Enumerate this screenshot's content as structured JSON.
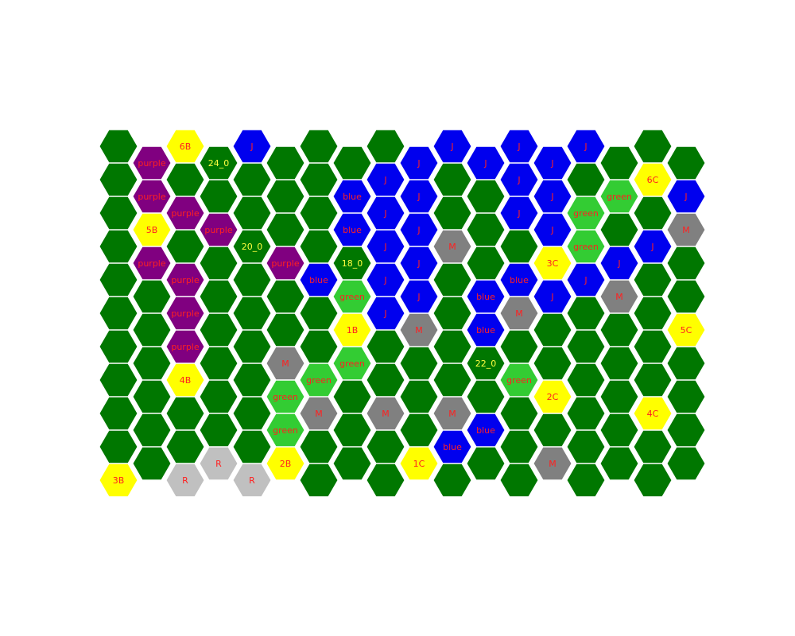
{
  "board": {
    "columns": 18,
    "rows": 11,
    "colors": {
      "forest": "#007700",
      "green": "#33cc33",
      "blue": "#0000ee",
      "purple": "#800080",
      "yellow": "#ffff00",
      "gray": "#808080",
      "silver": "#c0c0c0",
      "label_red": "#ff2020",
      "label_yellow": "#ffff40",
      "outline": "#ffffff"
    },
    "tiles": [
      {
        "col": 0,
        "row": 0,
        "fill": "forest"
      },
      {
        "col": 0,
        "row": 1,
        "fill": "forest"
      },
      {
        "col": 0,
        "row": 2,
        "fill": "forest"
      },
      {
        "col": 0,
        "row": 3,
        "fill": "forest"
      },
      {
        "col": 0,
        "row": 4,
        "fill": "forest"
      },
      {
        "col": 0,
        "row": 5,
        "fill": "forest"
      },
      {
        "col": 0,
        "row": 6,
        "fill": "forest"
      },
      {
        "col": 0,
        "row": 7,
        "fill": "forest"
      },
      {
        "col": 0,
        "row": 8,
        "fill": "forest"
      },
      {
        "col": 0,
        "row": 9,
        "fill": "forest"
      },
      {
        "col": 0,
        "row": 10,
        "fill": "yellow",
        "label": "3B",
        "label_color": "label_red"
      },
      {
        "col": 1,
        "row": 0,
        "fill": "purple",
        "label": "purple",
        "label_color": "label_red"
      },
      {
        "col": 1,
        "row": 1,
        "fill": "purple",
        "label": "purple",
        "label_color": "label_red"
      },
      {
        "col": 1,
        "row": 2,
        "fill": "yellow",
        "label": "5B",
        "label_color": "label_red"
      },
      {
        "col": 1,
        "row": 3,
        "fill": "purple",
        "label": "purple",
        "label_color": "label_red"
      },
      {
        "col": 1,
        "row": 4,
        "fill": "forest"
      },
      {
        "col": 1,
        "row": 5,
        "fill": "forest"
      },
      {
        "col": 1,
        "row": 6,
        "fill": "forest"
      },
      {
        "col": 1,
        "row": 7,
        "fill": "forest"
      },
      {
        "col": 1,
        "row": 8,
        "fill": "forest"
      },
      {
        "col": 1,
        "row": 9,
        "fill": "forest"
      },
      {
        "col": 2,
        "row": 0,
        "fill": "yellow",
        "label": "6B",
        "label_color": "label_red"
      },
      {
        "col": 2,
        "row": 1,
        "fill": "forest"
      },
      {
        "col": 2,
        "row": 2,
        "fill": "purple",
        "label": "purple",
        "label_color": "label_red"
      },
      {
        "col": 2,
        "row": 3,
        "fill": "forest"
      },
      {
        "col": 2,
        "row": 4,
        "fill": "purple",
        "label": "purple",
        "label_color": "label_red"
      },
      {
        "col": 2,
        "row": 5,
        "fill": "purple",
        "label": "purple",
        "label_color": "label_red"
      },
      {
        "col": 2,
        "row": 6,
        "fill": "purple",
        "label": "purple",
        "label_color": "label_red"
      },
      {
        "col": 2,
        "row": 7,
        "fill": "yellow",
        "label": "4B",
        "label_color": "label_red"
      },
      {
        "col": 2,
        "row": 8,
        "fill": "forest"
      },
      {
        "col": 2,
        "row": 9,
        "fill": "forest"
      },
      {
        "col": 2,
        "row": 10,
        "fill": "silver",
        "label": "R",
        "label_color": "label_red"
      },
      {
        "col": 3,
        "row": 0,
        "fill": "forest",
        "label": "24_0",
        "label_color": "label_yellow"
      },
      {
        "col": 3,
        "row": 1,
        "fill": "forest"
      },
      {
        "col": 3,
        "row": 2,
        "fill": "purple",
        "label": "purple",
        "label_color": "label_red"
      },
      {
        "col": 3,
        "row": 3,
        "fill": "forest"
      },
      {
        "col": 3,
        "row": 4,
        "fill": "forest"
      },
      {
        "col": 3,
        "row": 5,
        "fill": "forest"
      },
      {
        "col": 3,
        "row": 6,
        "fill": "forest"
      },
      {
        "col": 3,
        "row": 7,
        "fill": "forest"
      },
      {
        "col": 3,
        "row": 8,
        "fill": "forest"
      },
      {
        "col": 3,
        "row": 9,
        "fill": "silver",
        "label": "R",
        "label_color": "label_red"
      },
      {
        "col": 4,
        "row": 0,
        "fill": "blue",
        "label": "J",
        "label_color": "label_red"
      },
      {
        "col": 4,
        "row": 1,
        "fill": "forest"
      },
      {
        "col": 4,
        "row": 2,
        "fill": "forest"
      },
      {
        "col": 4,
        "row": 3,
        "fill": "forest",
        "label": "20_0",
        "label_color": "label_yellow"
      },
      {
        "col": 4,
        "row": 4,
        "fill": "forest"
      },
      {
        "col": 4,
        "row": 5,
        "fill": "forest"
      },
      {
        "col": 4,
        "row": 6,
        "fill": "forest"
      },
      {
        "col": 4,
        "row": 7,
        "fill": "forest"
      },
      {
        "col": 4,
        "row": 8,
        "fill": "forest"
      },
      {
        "col": 4,
        "row": 9,
        "fill": "forest"
      },
      {
        "col": 4,
        "row": 10,
        "fill": "silver",
        "label": "R",
        "label_color": "label_red"
      },
      {
        "col": 5,
        "row": 0,
        "fill": "forest"
      },
      {
        "col": 5,
        "row": 1,
        "fill": "forest"
      },
      {
        "col": 5,
        "row": 2,
        "fill": "forest"
      },
      {
        "col": 5,
        "row": 3,
        "fill": "purple",
        "label": "purple",
        "label_color": "label_red"
      },
      {
        "col": 5,
        "row": 4,
        "fill": "forest"
      },
      {
        "col": 5,
        "row": 5,
        "fill": "forest"
      },
      {
        "col": 5,
        "row": 6,
        "fill": "gray",
        "label": "M",
        "label_color": "label_red"
      },
      {
        "col": 5,
        "row": 7,
        "fill": "green",
        "label": "green",
        "label_color": "label_red"
      },
      {
        "col": 5,
        "row": 8,
        "fill": "green",
        "label": "green",
        "label_color": "label_red"
      },
      {
        "col": 5,
        "row": 9,
        "fill": "yellow",
        "label": "2B",
        "label_color": "label_red"
      },
      {
        "col": 6,
        "row": 0,
        "fill": "forest"
      },
      {
        "col": 6,
        "row": 1,
        "fill": "forest"
      },
      {
        "col": 6,
        "row": 2,
        "fill": "forest"
      },
      {
        "col": 6,
        "row": 3,
        "fill": "forest"
      },
      {
        "col": 6,
        "row": 4,
        "fill": "blue",
        "label": "blue",
        "label_color": "label_red"
      },
      {
        "col": 6,
        "row": 5,
        "fill": "forest"
      },
      {
        "col": 6,
        "row": 6,
        "fill": "forest"
      },
      {
        "col": 6,
        "row": 7,
        "fill": "green",
        "label": "green",
        "label_color": "label_red"
      },
      {
        "col": 6,
        "row": 8,
        "fill": "gray",
        "label": "M",
        "label_color": "label_red"
      },
      {
        "col": 6,
        "row": 9,
        "fill": "forest"
      },
      {
        "col": 6,
        "row": 10,
        "fill": "forest"
      },
      {
        "col": 7,
        "row": 0,
        "fill": "forest"
      },
      {
        "col": 7,
        "row": 1,
        "fill": "blue",
        "label": "blue",
        "label_color": "label_red"
      },
      {
        "col": 7,
        "row": 2,
        "fill": "blue",
        "label": "blue",
        "label_color": "label_red"
      },
      {
        "col": 7,
        "row": 3,
        "fill": "forest",
        "label": "18_0",
        "label_color": "label_yellow"
      },
      {
        "col": 7,
        "row": 4,
        "fill": "green",
        "label": "green",
        "label_color": "label_red"
      },
      {
        "col": 7,
        "row": 5,
        "fill": "yellow",
        "label": "1B",
        "label_color": "label_red"
      },
      {
        "col": 7,
        "row": 6,
        "fill": "green",
        "label": "green",
        "label_color": "label_red"
      },
      {
        "col": 7,
        "row": 7,
        "fill": "forest"
      },
      {
        "col": 7,
        "row": 8,
        "fill": "forest"
      },
      {
        "col": 7,
        "row": 9,
        "fill": "forest"
      },
      {
        "col": 8,
        "row": 0,
        "fill": "forest"
      },
      {
        "col": 8,
        "row": 1,
        "fill": "blue",
        "label": "J",
        "label_color": "label_red"
      },
      {
        "col": 8,
        "row": 2,
        "fill": "blue",
        "label": "J",
        "label_color": "label_red"
      },
      {
        "col": 8,
        "row": 3,
        "fill": "blue",
        "label": "J",
        "label_color": "label_red"
      },
      {
        "col": 8,
        "row": 4,
        "fill": "blue",
        "label": "J",
        "label_color": "label_red"
      },
      {
        "col": 8,
        "row": 5,
        "fill": "blue",
        "label": "J",
        "label_color": "label_red"
      },
      {
        "col": 8,
        "row": 6,
        "fill": "forest"
      },
      {
        "col": 8,
        "row": 7,
        "fill": "forest"
      },
      {
        "col": 8,
        "row": 8,
        "fill": "gray",
        "label": "M",
        "label_color": "label_red"
      },
      {
        "col": 8,
        "row": 9,
        "fill": "forest"
      },
      {
        "col": 8,
        "row": 10,
        "fill": "forest"
      },
      {
        "col": 9,
        "row": 0,
        "fill": "blue",
        "label": "J",
        "label_color": "label_red"
      },
      {
        "col": 9,
        "row": 1,
        "fill": "blue",
        "label": "J",
        "label_color": "label_red"
      },
      {
        "col": 9,
        "row": 2,
        "fill": "blue",
        "label": "J",
        "label_color": "label_red"
      },
      {
        "col": 9,
        "row": 3,
        "fill": "blue",
        "label": "J",
        "label_color": "label_red"
      },
      {
        "col": 9,
        "row": 4,
        "fill": "blue",
        "label": "J",
        "label_color": "label_red"
      },
      {
        "col": 9,
        "row": 5,
        "fill": "gray",
        "label": "M",
        "label_color": "label_red"
      },
      {
        "col": 9,
        "row": 6,
        "fill": "forest"
      },
      {
        "col": 9,
        "row": 7,
        "fill": "forest"
      },
      {
        "col": 9,
        "row": 8,
        "fill": "forest"
      },
      {
        "col": 9,
        "row": 9,
        "fill": "yellow",
        "label": "1C",
        "label_color": "label_red"
      },
      {
        "col": 10,
        "row": 0,
        "fill": "blue",
        "label": "J",
        "label_color": "label_red"
      },
      {
        "col": 10,
        "row": 1,
        "fill": "forest"
      },
      {
        "col": 10,
        "row": 2,
        "fill": "forest"
      },
      {
        "col": 10,
        "row": 3,
        "fill": "gray",
        "label": "M",
        "label_color": "label_red"
      },
      {
        "col": 10,
        "row": 4,
        "fill": "forest"
      },
      {
        "col": 10,
        "row": 5,
        "fill": "forest"
      },
      {
        "col": 10,
        "row": 6,
        "fill": "forest"
      },
      {
        "col": 10,
        "row": 7,
        "fill": "forest"
      },
      {
        "col": 10,
        "row": 8,
        "fill": "gray",
        "label": "M",
        "label_color": "label_red"
      },
      {
        "col": 10,
        "row": 9,
        "fill": "blue",
        "label": "blue",
        "label_color": "label_red"
      },
      {
        "col": 10,
        "row": 10,
        "fill": "forest"
      },
      {
        "col": 11,
        "row": 0,
        "fill": "blue",
        "label": "J",
        "label_color": "label_red"
      },
      {
        "col": 11,
        "row": 1,
        "fill": "forest"
      },
      {
        "col": 11,
        "row": 2,
        "fill": "forest"
      },
      {
        "col": 11,
        "row": 3,
        "fill": "forest"
      },
      {
        "col": 11,
        "row": 4,
        "fill": "blue",
        "label": "blue",
        "label_color": "label_red"
      },
      {
        "col": 11,
        "row": 5,
        "fill": "blue",
        "label": "blue",
        "label_color": "label_red"
      },
      {
        "col": 11,
        "row": 6,
        "fill": "forest",
        "label": "22_0",
        "label_color": "label_yellow"
      },
      {
        "col": 11,
        "row": 7,
        "fill": "forest"
      },
      {
        "col": 11,
        "row": 8,
        "fill": "blue",
        "label": "blue",
        "label_color": "label_red"
      },
      {
        "col": 11,
        "row": 9,
        "fill": "forest"
      },
      {
        "col": 12,
        "row": 0,
        "fill": "blue",
        "label": "J",
        "label_color": "label_red"
      },
      {
        "col": 12,
        "row": 1,
        "fill": "blue",
        "label": "J",
        "label_color": "label_red"
      },
      {
        "col": 12,
        "row": 2,
        "fill": "blue",
        "label": "J",
        "label_color": "label_red"
      },
      {
        "col": 12,
        "row": 3,
        "fill": "forest"
      },
      {
        "col": 12,
        "row": 4,
        "fill": "blue",
        "label": "blue",
        "label_color": "label_red"
      },
      {
        "col": 12,
        "row": 5,
        "fill": "gray",
        "label": "M",
        "label_color": "label_red"
      },
      {
        "col": 12,
        "row": 6,
        "fill": "forest"
      },
      {
        "col": 12,
        "row": 7,
        "fill": "green",
        "label": "green",
        "label_color": "label_red"
      },
      {
        "col": 12,
        "row": 8,
        "fill": "forest"
      },
      {
        "col": 12,
        "row": 9,
        "fill": "forest"
      },
      {
        "col": 12,
        "row": 10,
        "fill": "forest"
      },
      {
        "col": 13,
        "row": 0,
        "fill": "blue",
        "label": "J",
        "label_color": "label_red"
      },
      {
        "col": 13,
        "row": 1,
        "fill": "blue",
        "label": "J",
        "label_color": "label_red"
      },
      {
        "col": 13,
        "row": 2,
        "fill": "blue",
        "label": "J",
        "label_color": "label_red"
      },
      {
        "col": 13,
        "row": 3,
        "fill": "yellow",
        "label": "3C",
        "label_color": "label_red"
      },
      {
        "col": 13,
        "row": 4,
        "fill": "blue",
        "label": "J",
        "label_color": "label_red"
      },
      {
        "col": 13,
        "row": 5,
        "fill": "forest"
      },
      {
        "col": 13,
        "row": 6,
        "fill": "forest"
      },
      {
        "col": 13,
        "row": 7,
        "fill": "yellow",
        "label": "2C",
        "label_color": "label_red"
      },
      {
        "col": 13,
        "row": 8,
        "fill": "forest"
      },
      {
        "col": 13,
        "row": 9,
        "fill": "gray",
        "label": "M",
        "label_color": "label_red"
      },
      {
        "col": 14,
        "row": 0,
        "fill": "blue",
        "label": "J",
        "label_color": "label_red"
      },
      {
        "col": 14,
        "row": 1,
        "fill": "forest"
      },
      {
        "col": 14,
        "row": 2,
        "fill": "green",
        "label": "green",
        "label_color": "label_red"
      },
      {
        "col": 14,
        "row": 3,
        "fill": "green",
        "label": "green",
        "label_color": "label_red"
      },
      {
        "col": 14,
        "row": 4,
        "fill": "blue",
        "label": "J",
        "label_color": "label_red"
      },
      {
        "col": 14,
        "row": 5,
        "fill": "forest"
      },
      {
        "col": 14,
        "row": 6,
        "fill": "forest"
      },
      {
        "col": 14,
        "row": 7,
        "fill": "forest"
      },
      {
        "col": 14,
        "row": 8,
        "fill": "forest"
      },
      {
        "col": 14,
        "row": 9,
        "fill": "forest"
      },
      {
        "col": 14,
        "row": 10,
        "fill": "forest"
      },
      {
        "col": 15,
        "row": 0,
        "fill": "forest"
      },
      {
        "col": 15,
        "row": 1,
        "fill": "green",
        "label": "green",
        "label_color": "label_red"
      },
      {
        "col": 15,
        "row": 2,
        "fill": "forest"
      },
      {
        "col": 15,
        "row": 3,
        "fill": "blue",
        "label": "J",
        "label_color": "label_red"
      },
      {
        "col": 15,
        "row": 4,
        "fill": "gray",
        "label": "M",
        "label_color": "label_red"
      },
      {
        "col": 15,
        "row": 5,
        "fill": "forest"
      },
      {
        "col": 15,
        "row": 6,
        "fill": "forest"
      },
      {
        "col": 15,
        "row": 7,
        "fill": "forest"
      },
      {
        "col": 15,
        "row": 8,
        "fill": "forest"
      },
      {
        "col": 15,
        "row": 9,
        "fill": "forest"
      },
      {
        "col": 16,
        "row": 0,
        "fill": "forest"
      },
      {
        "col": 16,
        "row": 1,
        "fill": "yellow",
        "label": "6C",
        "label_color": "label_red"
      },
      {
        "col": 16,
        "row": 2,
        "fill": "forest"
      },
      {
        "col": 16,
        "row": 3,
        "fill": "blue",
        "label": "J",
        "label_color": "label_red"
      },
      {
        "col": 16,
        "row": 4,
        "fill": "forest"
      },
      {
        "col": 16,
        "row": 5,
        "fill": "forest"
      },
      {
        "col": 16,
        "row": 6,
        "fill": "forest"
      },
      {
        "col": 16,
        "row": 7,
        "fill": "forest"
      },
      {
        "col": 16,
        "row": 8,
        "fill": "yellow",
        "label": "4C",
        "label_color": "label_red"
      },
      {
        "col": 16,
        "row": 9,
        "fill": "forest"
      },
      {
        "col": 16,
        "row": 10,
        "fill": "forest"
      },
      {
        "col": 17,
        "row": 0,
        "fill": "forest"
      },
      {
        "col": 17,
        "row": 1,
        "fill": "blue",
        "label": "J",
        "label_color": "label_red"
      },
      {
        "col": 17,
        "row": 2,
        "fill": "gray",
        "label": "M",
        "label_color": "label_red"
      },
      {
        "col": 17,
        "row": 3,
        "fill": "forest"
      },
      {
        "col": 17,
        "row": 4,
        "fill": "forest"
      },
      {
        "col": 17,
        "row": 5,
        "fill": "yellow",
        "label": "5C",
        "label_color": "label_red"
      },
      {
        "col": 17,
        "row": 6,
        "fill": "forest"
      },
      {
        "col": 17,
        "row": 7,
        "fill": "forest"
      },
      {
        "col": 17,
        "row": 8,
        "fill": "forest"
      },
      {
        "col": 17,
        "row": 9,
        "fill": "forest"
      }
    ]
  }
}
